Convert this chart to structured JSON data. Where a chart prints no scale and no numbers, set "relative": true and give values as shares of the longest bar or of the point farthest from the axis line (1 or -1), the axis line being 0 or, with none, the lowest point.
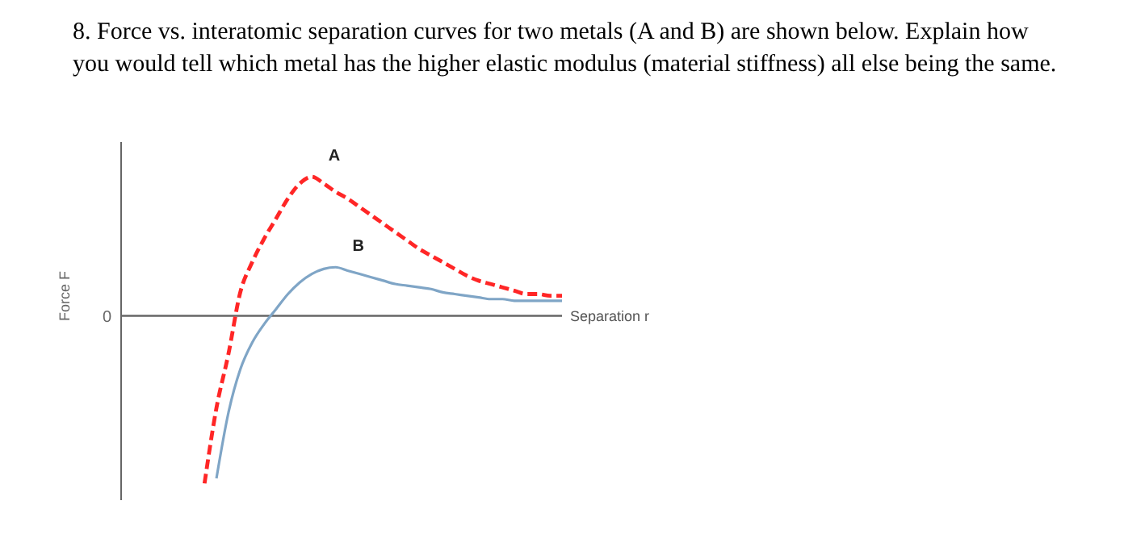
{
  "chart_data": {
    "type": "line",
    "title": "8. Force vs. interatomic separation curves for two metals (A and B) are shown below.  Explain how you would tell which metal has the higher elastic modulus (material stiffness) all else being the same.",
    "xlabel": "Separation r",
    "ylabel": "Force F",
    "relative": true,
    "annotations": [
      "0"
    ],
    "marker": "none",
    "legend": false,
    "categories": [
      null,
      null,
      null,
      null,
      null,
      null,
      null,
      null,
      null,
      null,
      null,
      null,
      null,
      null,
      null,
      null,
      null,
      null,
      null,
      null,
      null,
      null,
      null,
      null,
      null,
      null,
      null,
      null,
      null,
      null,
      null,
      null,
      null,
      null,
      null,
      null,
      null,
      null
    ],
    "series": [
      {
        "name": "A",
        "color": "#ff2626",
        "line_style": "dashed",
        "values": [
          null,
          null,
          null,
          null,
          null,
          null,
          null,
          -1.0,
          -0.55,
          -0.23,
          0.14,
          0.32,
          0.46,
          0.58,
          0.7,
          0.79,
          0.83,
          0.79,
          0.74,
          0.7,
          0.65,
          0.6,
          0.55,
          0.5,
          0.45,
          0.4,
          0.36,
          0.32,
          0.28,
          0.24,
          0.21,
          0.19,
          0.17,
          0.15,
          0.13,
          0.13,
          0.12,
          0.12
        ]
      },
      {
        "name": "B",
        "color": "#7fa5c6",
        "line_style": "solid",
        "values": [
          null,
          null,
          null,
          null,
          null,
          null,
          null,
          null,
          -0.97,
          -0.58,
          -0.32,
          -0.16,
          -0.05,
          0.04,
          0.13,
          0.2,
          0.25,
          0.28,
          0.29,
          0.27,
          0.25,
          0.23,
          0.21,
          0.19,
          0.18,
          0.17,
          0.16,
          0.14,
          0.13,
          0.12,
          0.11,
          0.1,
          0.1,
          0.09,
          0.09,
          0.09,
          0.09,
          0.09
        ]
      }
    ]
  }
}
